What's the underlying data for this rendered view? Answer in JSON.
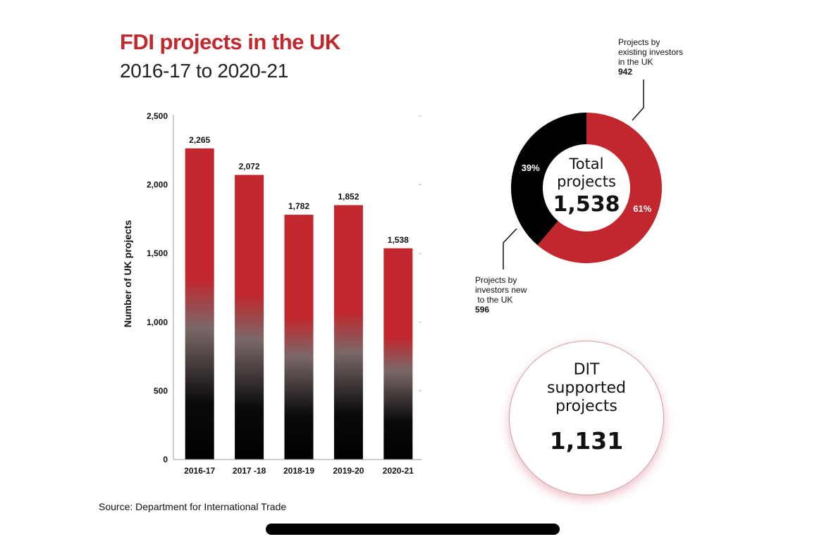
{
  "header": {
    "title": "FDI projects in the UK",
    "subtitle": "2016-17 to 2020-21"
  },
  "chart_data": [
    {
      "type": "bar",
      "categories": [
        "2016-17",
        "2017 -18",
        "2018-19",
        "2019-20",
        "2020-21"
      ],
      "values": [
        2265,
        2072,
        1782,
        1852,
        1538
      ],
      "value_labels": [
        "2,265",
        "2,072",
        "1,782",
        "1,852",
        "1,538"
      ],
      "ylabel": "Number of UK projects",
      "ylim": [
        0,
        2500
      ],
      "yticks": [
        0,
        500,
        1000,
        1500,
        2000,
        2500
      ],
      "ytick_labels": [
        "0",
        "500",
        "1,000",
        "1,500",
        "2,000",
        "2,500"
      ],
      "bar_color_top": "#c1272d",
      "bar_color_bottom": "#000000"
    },
    {
      "type": "pie",
      "style": "donut",
      "slices": [
        {
          "label": "Projects by existing investors in the UK",
          "value": 942,
          "percent_label": "61%",
          "color": "#c1272d"
        },
        {
          "label": "Projects by investors new to the UK",
          "value": 596,
          "percent_label": "39%",
          "color": "#000000"
        }
      ],
      "center_label": "Total projects",
      "center_value": "1,538"
    }
  ],
  "callouts": {
    "existing": {
      "lines": [
        "Projects by",
        "existing investors",
        "in the UK"
      ],
      "value": "942"
    },
    "new": {
      "lines": [
        "Projects by",
        "investors new",
        " to the UK"
      ],
      "value": "596"
    }
  },
  "dit": {
    "label_lines": [
      "DIT",
      "supported",
      "projects"
    ],
    "value": "1,131"
  },
  "source": "Source: Department for International Trade"
}
